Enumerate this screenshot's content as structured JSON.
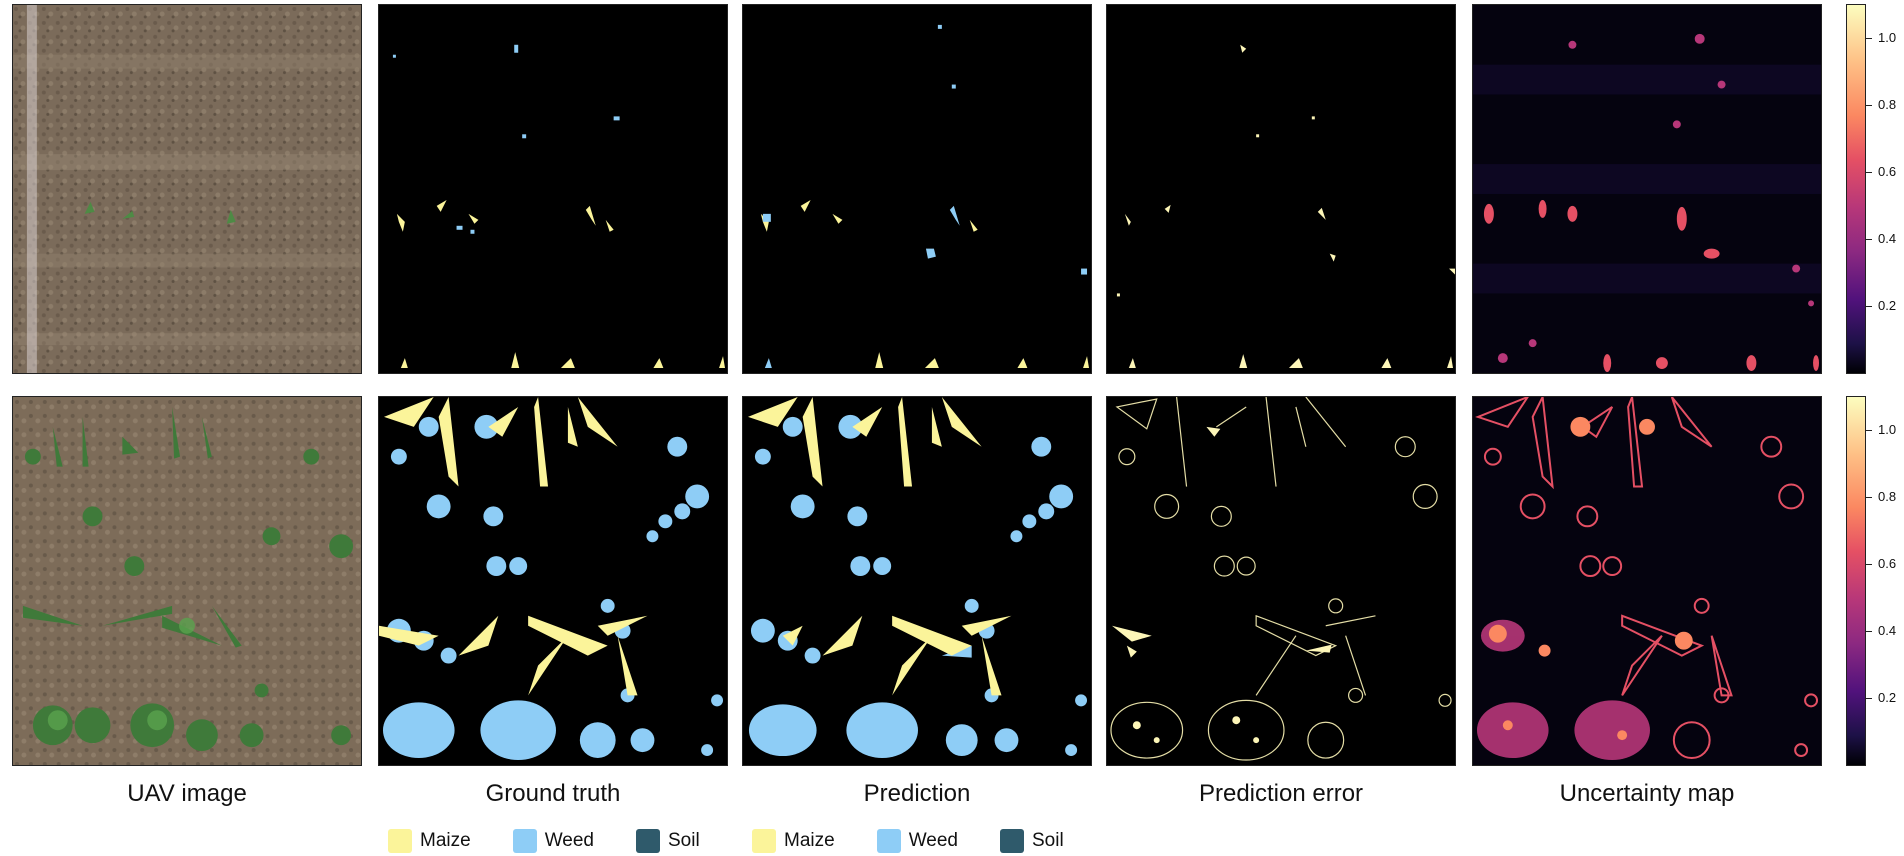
{
  "columns": {
    "uav": "UAV image",
    "gt": "Ground truth",
    "pred": "Prediction",
    "err": "Prediction error",
    "unc": "Uncertainty map"
  },
  "colorbar": {
    "ticks": [
      "1.0",
      "0.8",
      "0.6",
      "0.4",
      "0.2"
    ],
    "colormap": "magma"
  },
  "legend": {
    "items": [
      {
        "label": "Maize",
        "color": "#fbf49a"
      },
      {
        "label": "Weed",
        "color": "#8ecdf6"
      },
      {
        "label": "Soil",
        "color": "#2f5a6b"
      }
    ]
  },
  "colors": {
    "background": "#000000",
    "maize": "#fbf49a",
    "weed": "#8ecdf6",
    "error": "#fdf6b8",
    "soil_photo": "#7a6a58",
    "crop_photo": "#3f7a3a"
  }
}
